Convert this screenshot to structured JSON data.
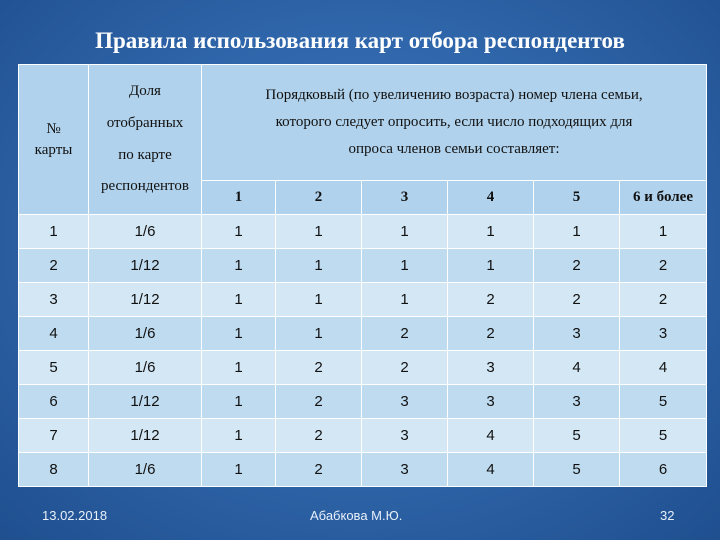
{
  "title": "Правила использования карт отбора респондентов",
  "header": {
    "card_number_lines": [
      "№",
      "карты"
    ],
    "share_lines": [
      "Доля",
      "отобранных",
      "по карте",
      "респондентов"
    ],
    "serial_lines": [
      "Порядковый (по увеличению возраста) номер члена семьи,",
      "которого следует опросить, если число подходящих для",
      "опроса членов семьи составляет:"
    ],
    "family_sizes": [
      "1",
      "2",
      "3",
      "4",
      "5",
      "6 и более"
    ]
  },
  "rows": [
    {
      "card": "1",
      "share": "1/6",
      "values": [
        "1",
        "1",
        "1",
        "1",
        "1",
        "1"
      ]
    },
    {
      "card": "2",
      "share": "1/12",
      "values": [
        "1",
        "1",
        "1",
        "1",
        "2",
        "2"
      ]
    },
    {
      "card": "3",
      "share": "1/12",
      "values": [
        "1",
        "1",
        "1",
        "2",
        "2",
        "2"
      ]
    },
    {
      "card": "4",
      "share": "1/6",
      "values": [
        "1",
        "1",
        "2",
        "2",
        "3",
        "3"
      ]
    },
    {
      "card": "5",
      "share": "1/6",
      "values": [
        "1",
        "2",
        "2",
        "3",
        "4",
        "4"
      ]
    },
    {
      "card": "6",
      "share": "1/12",
      "values": [
        "1",
        "2",
        "3",
        "3",
        "3",
        "5"
      ]
    },
    {
      "card": "7",
      "share": "1/12",
      "values": [
        "1",
        "2",
        "3",
        "4",
        "5",
        "5"
      ]
    },
    {
      "card": "8",
      "share": "1/6",
      "values": [
        "1",
        "2",
        "3",
        "4",
        "5",
        "6"
      ]
    }
  ],
  "footer": {
    "date": "13.02.2018",
    "author": "Абабкова М.Ю.",
    "page": "32"
  },
  "colors": {
    "background": "#3168ad",
    "header_fill": "#b0d2ec",
    "row_fill_light": "#d3e7f5",
    "row_fill_dark": "#bfdbef"
  }
}
